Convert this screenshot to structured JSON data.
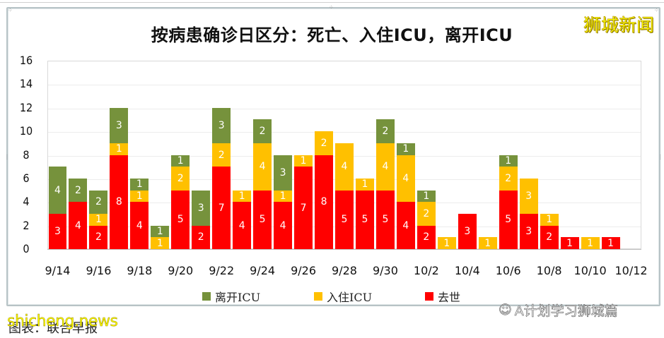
{
  "title": "按病患确诊日区分：死亡、入住ICU，离开ICU",
  "brand_watermark": "狮城新闻",
  "footer": {
    "source_text": "图表：联合早报",
    "site_watermark": "shicheng.news",
    "wechat_watermark": "A计划学习狮城篇",
    "wechat_icon": "wechat-icon"
  },
  "colors": {
    "left_icu": "#76923c",
    "admitted_icu": "#ffc000",
    "deceased": "#ff0000"
  },
  "legend": [
    {
      "label": "离开ICU",
      "color": "#76923c"
    },
    {
      "label": "入住ICU",
      "color": "#ffc000"
    },
    {
      "label": "去世",
      "color": "#ff0000"
    }
  ],
  "y_ticks": [
    "0",
    "2",
    "4",
    "6",
    "8",
    "10",
    "12",
    "14",
    "16"
  ],
  "x_tick_labels": [
    "9/14",
    "9/16",
    "9/18",
    "9/20",
    "9/22",
    "9/24",
    "9/26",
    "9/28",
    "9/30",
    "10/2",
    "10/4",
    "10/6",
    "10/8",
    "10/10",
    "10/12"
  ],
  "chart_data": {
    "type": "bar",
    "stacked": true,
    "title": "按病患确诊日区分：死亡、入住ICU，离开ICU",
    "xlabel": "",
    "ylabel": "",
    "ylim": [
      0,
      16
    ],
    "y_tick_step": 2,
    "grid": true,
    "legend_position": "bottom",
    "categories": [
      "9/14",
      "9/15",
      "9/16",
      "9/17",
      "9/18",
      "9/19",
      "9/20",
      "9/21",
      "9/22",
      "9/23",
      "9/24",
      "9/25",
      "9/26",
      "9/27",
      "9/28",
      "9/29",
      "9/30",
      "10/1",
      "10/2",
      "10/3",
      "10/4",
      "10/5",
      "10/6",
      "10/7",
      "10/8",
      "10/9",
      "10/10",
      "10/11",
      "10/12"
    ],
    "series": [
      {
        "name": "去世",
        "color": "#ff0000",
        "values": [
          3,
          4,
          2,
          8,
          4,
          0,
          5,
          2,
          7,
          4,
          5,
          4,
          7,
          8,
          5,
          5,
          5,
          4,
          2,
          0,
          3,
          0,
          5,
          3,
          2,
          1,
          0,
          1,
          0
        ]
      },
      {
        "name": "入住ICU",
        "color": "#ffc000",
        "values": [
          0,
          0,
          1,
          1,
          1,
          1,
          2,
          0,
          2,
          1,
          4,
          1,
          1,
          2,
          4,
          1,
          4,
          4,
          2,
          1,
          0,
          1,
          2,
          3,
          1,
          0,
          1,
          0,
          0
        ]
      },
      {
        "name": "离开ICU",
        "color": "#76923c",
        "values": [
          4,
          2,
          2,
          3,
          1,
          1,
          1,
          3,
          3,
          0,
          2,
          3,
          0,
          0,
          0,
          0,
          2,
          1,
          1,
          0,
          0,
          0,
          1,
          0,
          0,
          0,
          0,
          0,
          0
        ]
      }
    ]
  }
}
